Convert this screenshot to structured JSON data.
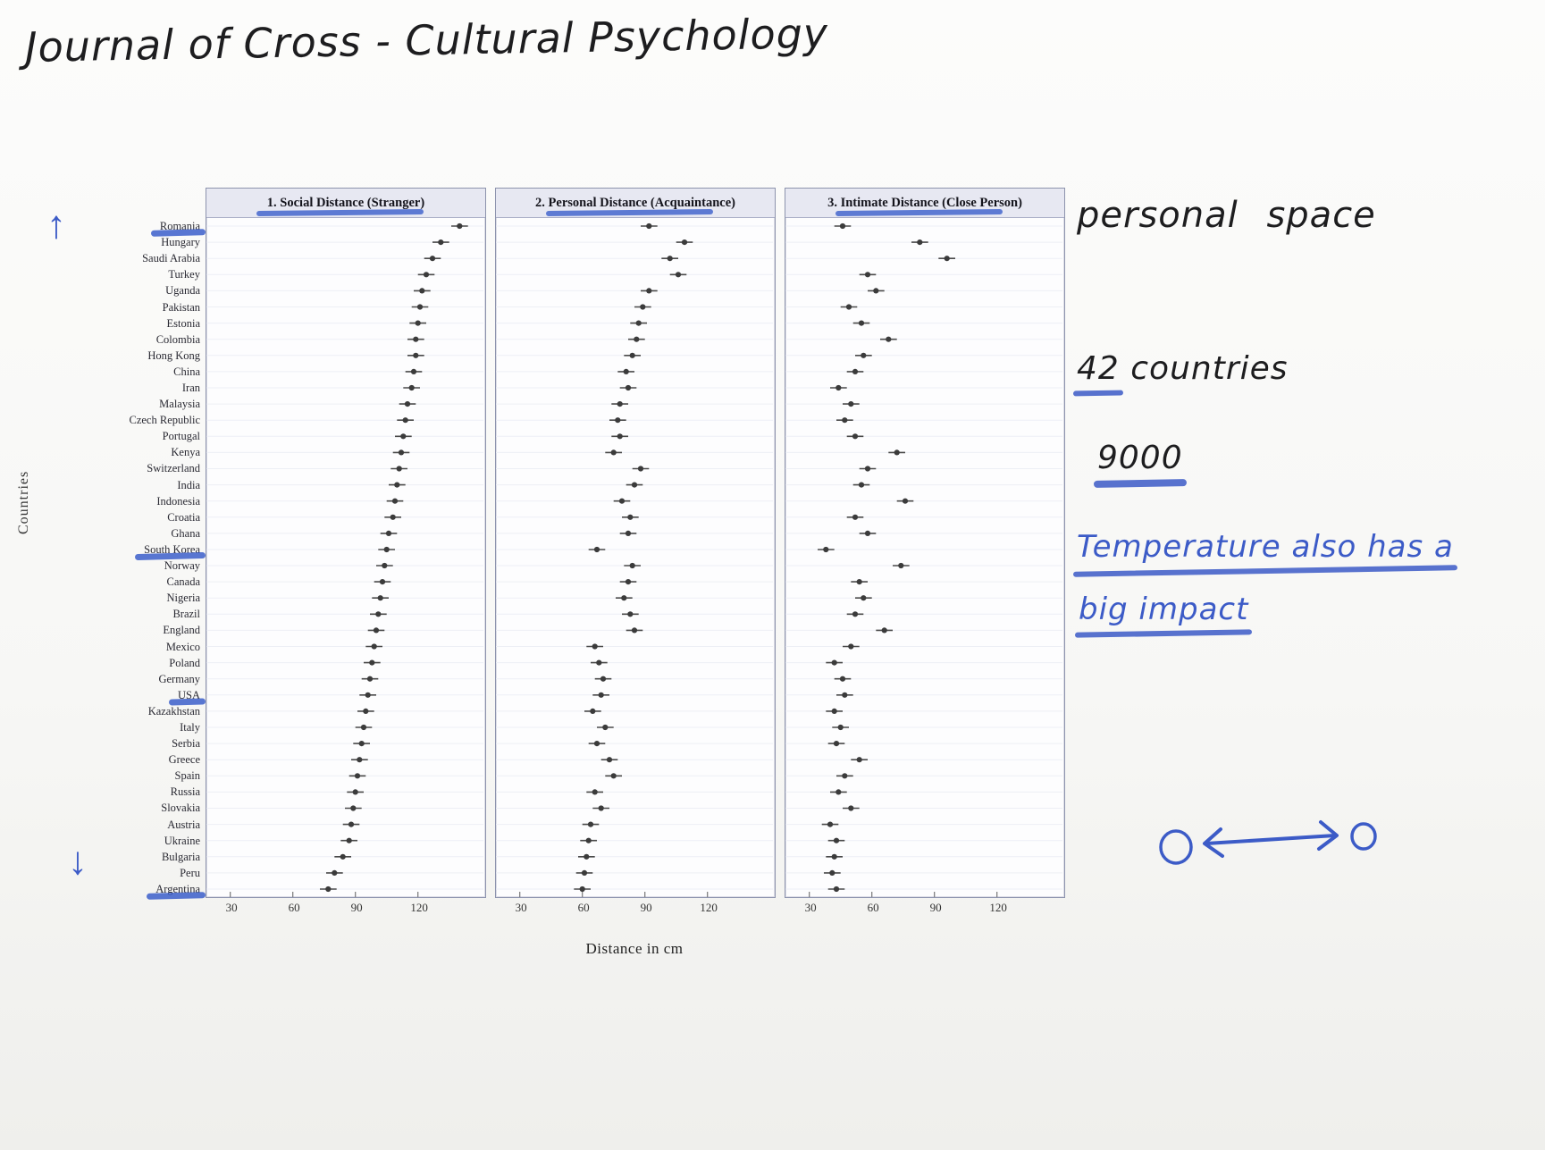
{
  "page": {
    "title": "Journal of Cross - Cultural Psychology",
    "annotations": {
      "personal_space": "personal space",
      "countries_num": "42",
      "countries_word": "countries",
      "sample": "9000",
      "temperature_line1": "Temperature also has a",
      "temperature_line2": "big impact"
    },
    "glyphs": {
      "up_arrow": "↑",
      "down_arrow": "↓"
    },
    "ink_blue": "#3c5bc7"
  },
  "chart_data": {
    "type": "scatter",
    "subtype": "dot-plot-with-error-bars",
    "title": "",
    "xlabel": "Distance in cm",
    "ylabel": "Countries",
    "x_ticks": [
      30,
      60,
      90,
      120
    ],
    "xlim": [
      22,
      148
    ],
    "error": 4,
    "grid": "horizontal-rows",
    "legend": "none",
    "highlighted_countries": [
      "Romania",
      "South Korea",
      "USA",
      "Argentina"
    ],
    "categories": [
      "Romania",
      "Hungary",
      "Saudi Arabia",
      "Turkey",
      "Uganda",
      "Pakistan",
      "Estonia",
      "Colombia",
      "Hong Kong",
      "China",
      "Iran",
      "Malaysia",
      "Czech Republic",
      "Portugal",
      "Kenya",
      "Switzerland",
      "India",
      "Indonesia",
      "Croatia",
      "Ghana",
      "South Korea",
      "Norway",
      "Canada",
      "Nigeria",
      "Brazil",
      "England",
      "Mexico",
      "Poland",
      "Germany",
      "USA",
      "Kazakhstan",
      "Italy",
      "Serbia",
      "Greece",
      "Spain",
      "Russia",
      "Slovakia",
      "Austria",
      "Ukraine",
      "Bulgaria",
      "Peru",
      "Argentina"
    ],
    "panels": [
      {
        "title": "1. Social Distance (Stranger)",
        "values": [
          140,
          131,
          127,
          124,
          122,
          121,
          120,
          119,
          119,
          118,
          117,
          115,
          114,
          113,
          112,
          111,
          110,
          109,
          108,
          106,
          105,
          104,
          103,
          102,
          101,
          100,
          99,
          98,
          97,
          96,
          95,
          94,
          93,
          92,
          91,
          90,
          89,
          88,
          87,
          84,
          80,
          77
        ]
      },
      {
        "title": "2. Personal Distance (Acquaintance)",
        "values": [
          92,
          109,
          102,
          106,
          92,
          89,
          87,
          86,
          84,
          81,
          82,
          78,
          77,
          78,
          75,
          88,
          85,
          79,
          83,
          82,
          67,
          84,
          82,
          80,
          83,
          85,
          66,
          68,
          70,
          69,
          65,
          71,
          67,
          73,
          75,
          66,
          69,
          64,
          63,
          62,
          61,
          60
        ]
      },
      {
        "title": "3. Intimate Distance (Close Person)",
        "values": [
          46,
          83,
          96,
          58,
          62,
          49,
          55,
          68,
          56,
          52,
          44,
          50,
          47,
          52,
          72,
          58,
          55,
          76,
          52,
          58,
          38,
          74,
          54,
          56,
          52,
          66,
          50,
          42,
          46,
          47,
          42,
          45,
          43,
          54,
          47,
          44,
          50,
          40,
          43,
          42,
          41,
          43
        ]
      }
    ]
  }
}
